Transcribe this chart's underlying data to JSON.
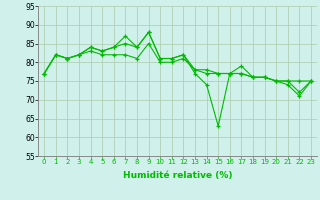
{
  "xlabel": "Humidité relative (%)",
  "background_color": "#cff0eb",
  "grid_color": "#aaccaa",
  "line_color": "#00bb00",
  "marker": "+",
  "x": [
    0,
    1,
    2,
    3,
    4,
    5,
    6,
    7,
    8,
    9,
    10,
    11,
    12,
    13,
    14,
    15,
    16,
    17,
    18,
    19,
    20,
    21,
    22,
    23
  ],
  "series": [
    [
      77,
      82,
      81,
      82,
      84,
      83,
      84,
      85,
      84,
      88,
      81,
      81,
      82,
      78,
      77,
      77,
      77,
      79,
      76,
      76,
      75,
      74,
      71,
      75
    ],
    [
      77,
      82,
      81,
      82,
      84,
      83,
      84,
      87,
      84,
      88,
      81,
      81,
      82,
      77,
      74,
      63,
      77,
      77,
      76,
      76,
      75,
      75,
      72,
      75
    ],
    [
      77,
      82,
      81,
      82,
      83,
      82,
      82,
      82,
      81,
      85,
      80,
      80,
      81,
      78,
      78,
      77,
      77,
      77,
      76,
      76,
      75,
      75,
      75,
      75
    ]
  ],
  "ylim": [
    55,
    95
  ],
  "yticks": [
    55,
    60,
    65,
    70,
    75,
    80,
    85,
    90,
    95
  ],
  "xlim": [
    -0.5,
    23.5
  ],
  "xticks": [
    0,
    1,
    2,
    3,
    4,
    5,
    6,
    7,
    8,
    9,
    10,
    11,
    12,
    13,
    14,
    15,
    16,
    17,
    18,
    19,
    20,
    21,
    22,
    23
  ],
  "xlabel_fontsize": 6.5,
  "xlabel_color": "#00bb00",
  "tick_fontsize": 5.0,
  "ytick_fontsize": 5.5,
  "linewidth": 0.8,
  "markersize": 3,
  "markeredgewidth": 0.9
}
